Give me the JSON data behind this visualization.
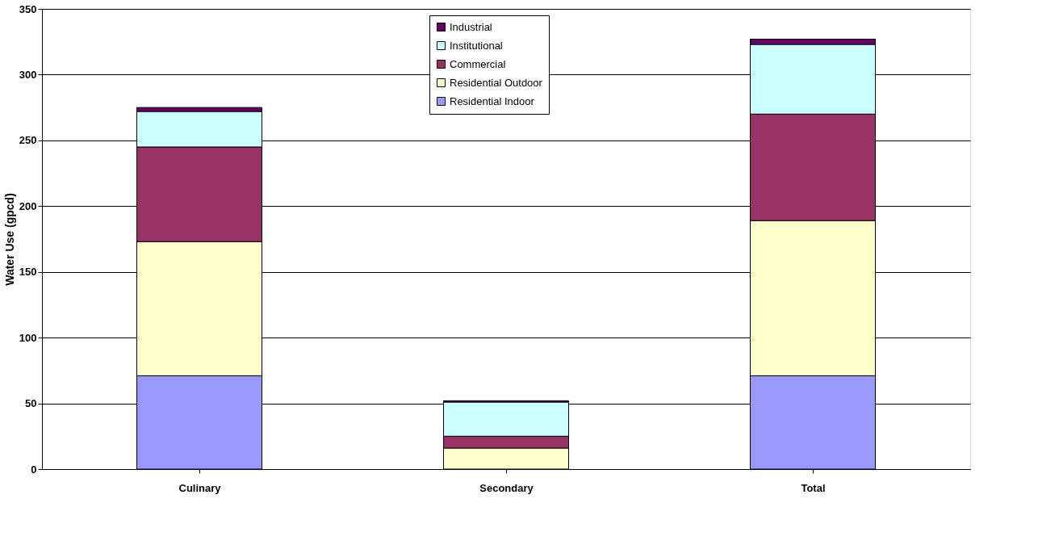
{
  "chart_data": {
    "type": "bar",
    "stacked": true,
    "ylabel": "Water Use (gpcd)",
    "categories": [
      "Culinary",
      "Secondary",
      "Total"
    ],
    "series": [
      {
        "name": "Residential Indoor",
        "color": "#9999ff",
        "values": [
          71,
          0,
          71
        ]
      },
      {
        "name": "Residential Outdoor",
        "color": "#ffffcc",
        "values": [
          102,
          16,
          118
        ]
      },
      {
        "name": "Commercial",
        "color": "#993366",
        "values": [
          72,
          9,
          81
        ]
      },
      {
        "name": "Institutional",
        "color": "#ccffff",
        "values": [
          27,
          26,
          53
        ]
      },
      {
        "name": "Industrial",
        "color": "#660066",
        "values": [
          3,
          1,
          4
        ]
      }
    ],
    "ylim": [
      0,
      350
    ],
    "yticks": [
      0,
      50,
      100,
      150,
      200,
      250,
      300,
      350
    ],
    "grid": "y",
    "legend": "top"
  }
}
